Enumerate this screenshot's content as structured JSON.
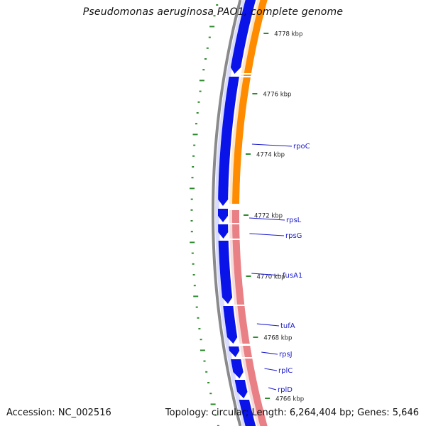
{
  "header": {
    "title": "Pseudomonas aeruginosa PAO1, complete genome"
  },
  "footer": {
    "accession": "Accession: NC_002516",
    "topology": "Topology: circular; Length: 6,264,404 bp; Genes: 5,646"
  },
  "colors": {
    "backbone": "#8a8a8a",
    "cds_reverse": "#0a14e8",
    "cds_reverse_highlight": "#d9dcff",
    "cds_forward": "#ff8c00",
    "cds_forward_highlight": "#ffe6c4",
    "rrna_operon": "#e88085",
    "rrna_highlight": "#f8dcdc",
    "tick": "#2e8b2e",
    "gene_label": "#1a1acc",
    "scale_label": "#222222"
  },
  "scale_labels": [
    {
      "kbp": 4778,
      "text": "4778 kbp"
    },
    {
      "kbp": 4776,
      "text": "4776 kbp"
    },
    {
      "kbp": 4774,
      "text": "4774 kbp"
    },
    {
      "kbp": 4772,
      "text": "4772 kbp"
    },
    {
      "kbp": 4770,
      "text": "4770 kbp"
    },
    {
      "kbp": 4768,
      "text": "4768 kbp"
    },
    {
      "kbp": 4766,
      "text": "4766 kbp"
    }
  ],
  "genes": [
    {
      "name": "rpoC"
    },
    {
      "name": "rpsL"
    },
    {
      "name": "rpsG"
    },
    {
      "name": "fusA1"
    },
    {
      "name": "tufA"
    },
    {
      "name": "rpsJ"
    },
    {
      "name": "rplC"
    },
    {
      "name": "rplD"
    }
  ]
}
